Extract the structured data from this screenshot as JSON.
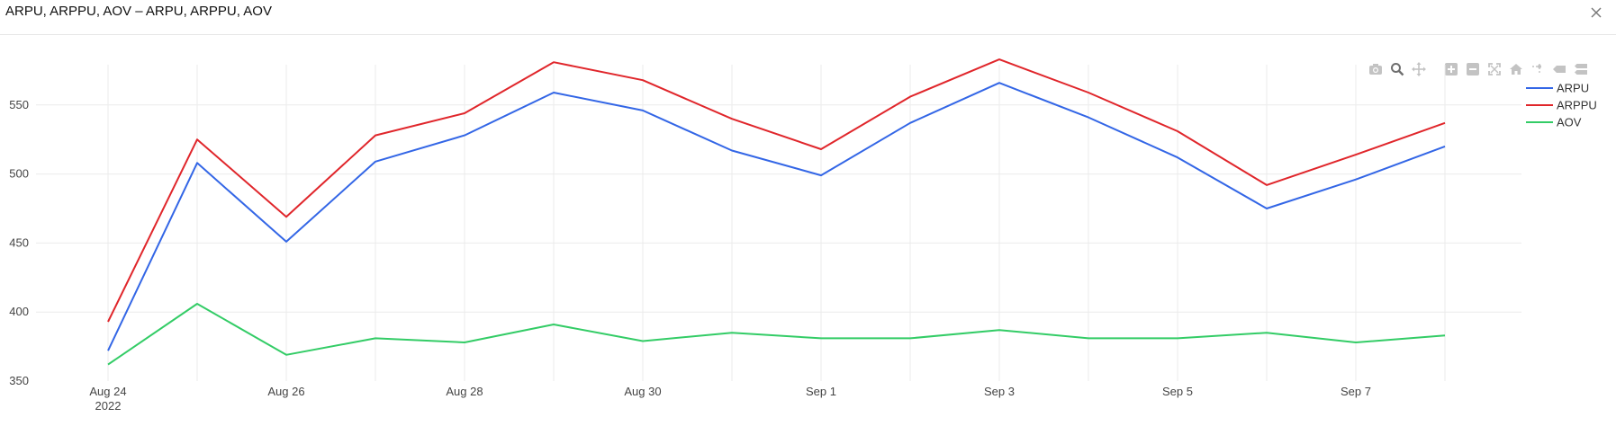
{
  "window": {
    "title": "ARPU, ARPPU, AOV – ARPU, ARPPU, AOV",
    "close_icon": "close-icon"
  },
  "modebar": {
    "icons": [
      "camera-icon",
      "zoom-icon",
      "pan-icon",
      "zoom-in-icon",
      "zoom-out-icon",
      "autoscale-icon",
      "reset-axes-icon",
      "spike-lines-icon",
      "hover-closest-icon",
      "hover-compare-icon"
    ]
  },
  "chart_data": {
    "type": "line",
    "title": "",
    "xlabel": "",
    "ylabel": "",
    "x": [
      "2022-08-24",
      "2022-08-25",
      "2022-08-26",
      "2022-08-27",
      "2022-08-28",
      "2022-08-29",
      "2022-08-30",
      "2022-08-31",
      "2022-09-01",
      "2022-09-02",
      "2022-09-03",
      "2022-09-04",
      "2022-09-05",
      "2022-09-06",
      "2022-09-07",
      "2022-09-08"
    ],
    "xlim": [
      "2022-08-24",
      "2022-09-08"
    ],
    "ylim": [
      350,
      600
    ],
    "yticks": [
      350,
      400,
      450,
      500,
      550
    ],
    "xtick_labels": [
      "Aug 24",
      "Aug 26",
      "Aug 28",
      "Aug 30",
      "Sep 1",
      "Sep 3",
      "Sep 5",
      "Sep 7"
    ],
    "xtick_dates": [
      "2022-08-24",
      "2022-08-26",
      "2022-08-28",
      "2022-08-30",
      "2022-09-01",
      "2022-09-03",
      "2022-09-05",
      "2022-09-07"
    ],
    "xtick_sublabel": "2022",
    "grid": true,
    "legend_position": "top-right",
    "series": [
      {
        "name": "ARPU",
        "color": "#3366e6",
        "values": [
          372,
          508,
          451,
          509,
          528,
          559,
          546,
          517,
          499,
          537,
          566,
          541,
          512,
          475,
          496,
          520
        ]
      },
      {
        "name": "ARPPU",
        "color": "#e0262b",
        "values": [
          393,
          525,
          469,
          528,
          544,
          581,
          568,
          540,
          518,
          556,
          583,
          559,
          531,
          492,
          514,
          537
        ]
      },
      {
        "name": "AOV",
        "color": "#33cc66",
        "values": [
          362,
          406,
          369,
          381,
          378,
          391,
          379,
          385,
          381,
          381,
          387,
          381,
          381,
          385,
          378,
          383
        ]
      }
    ]
  }
}
